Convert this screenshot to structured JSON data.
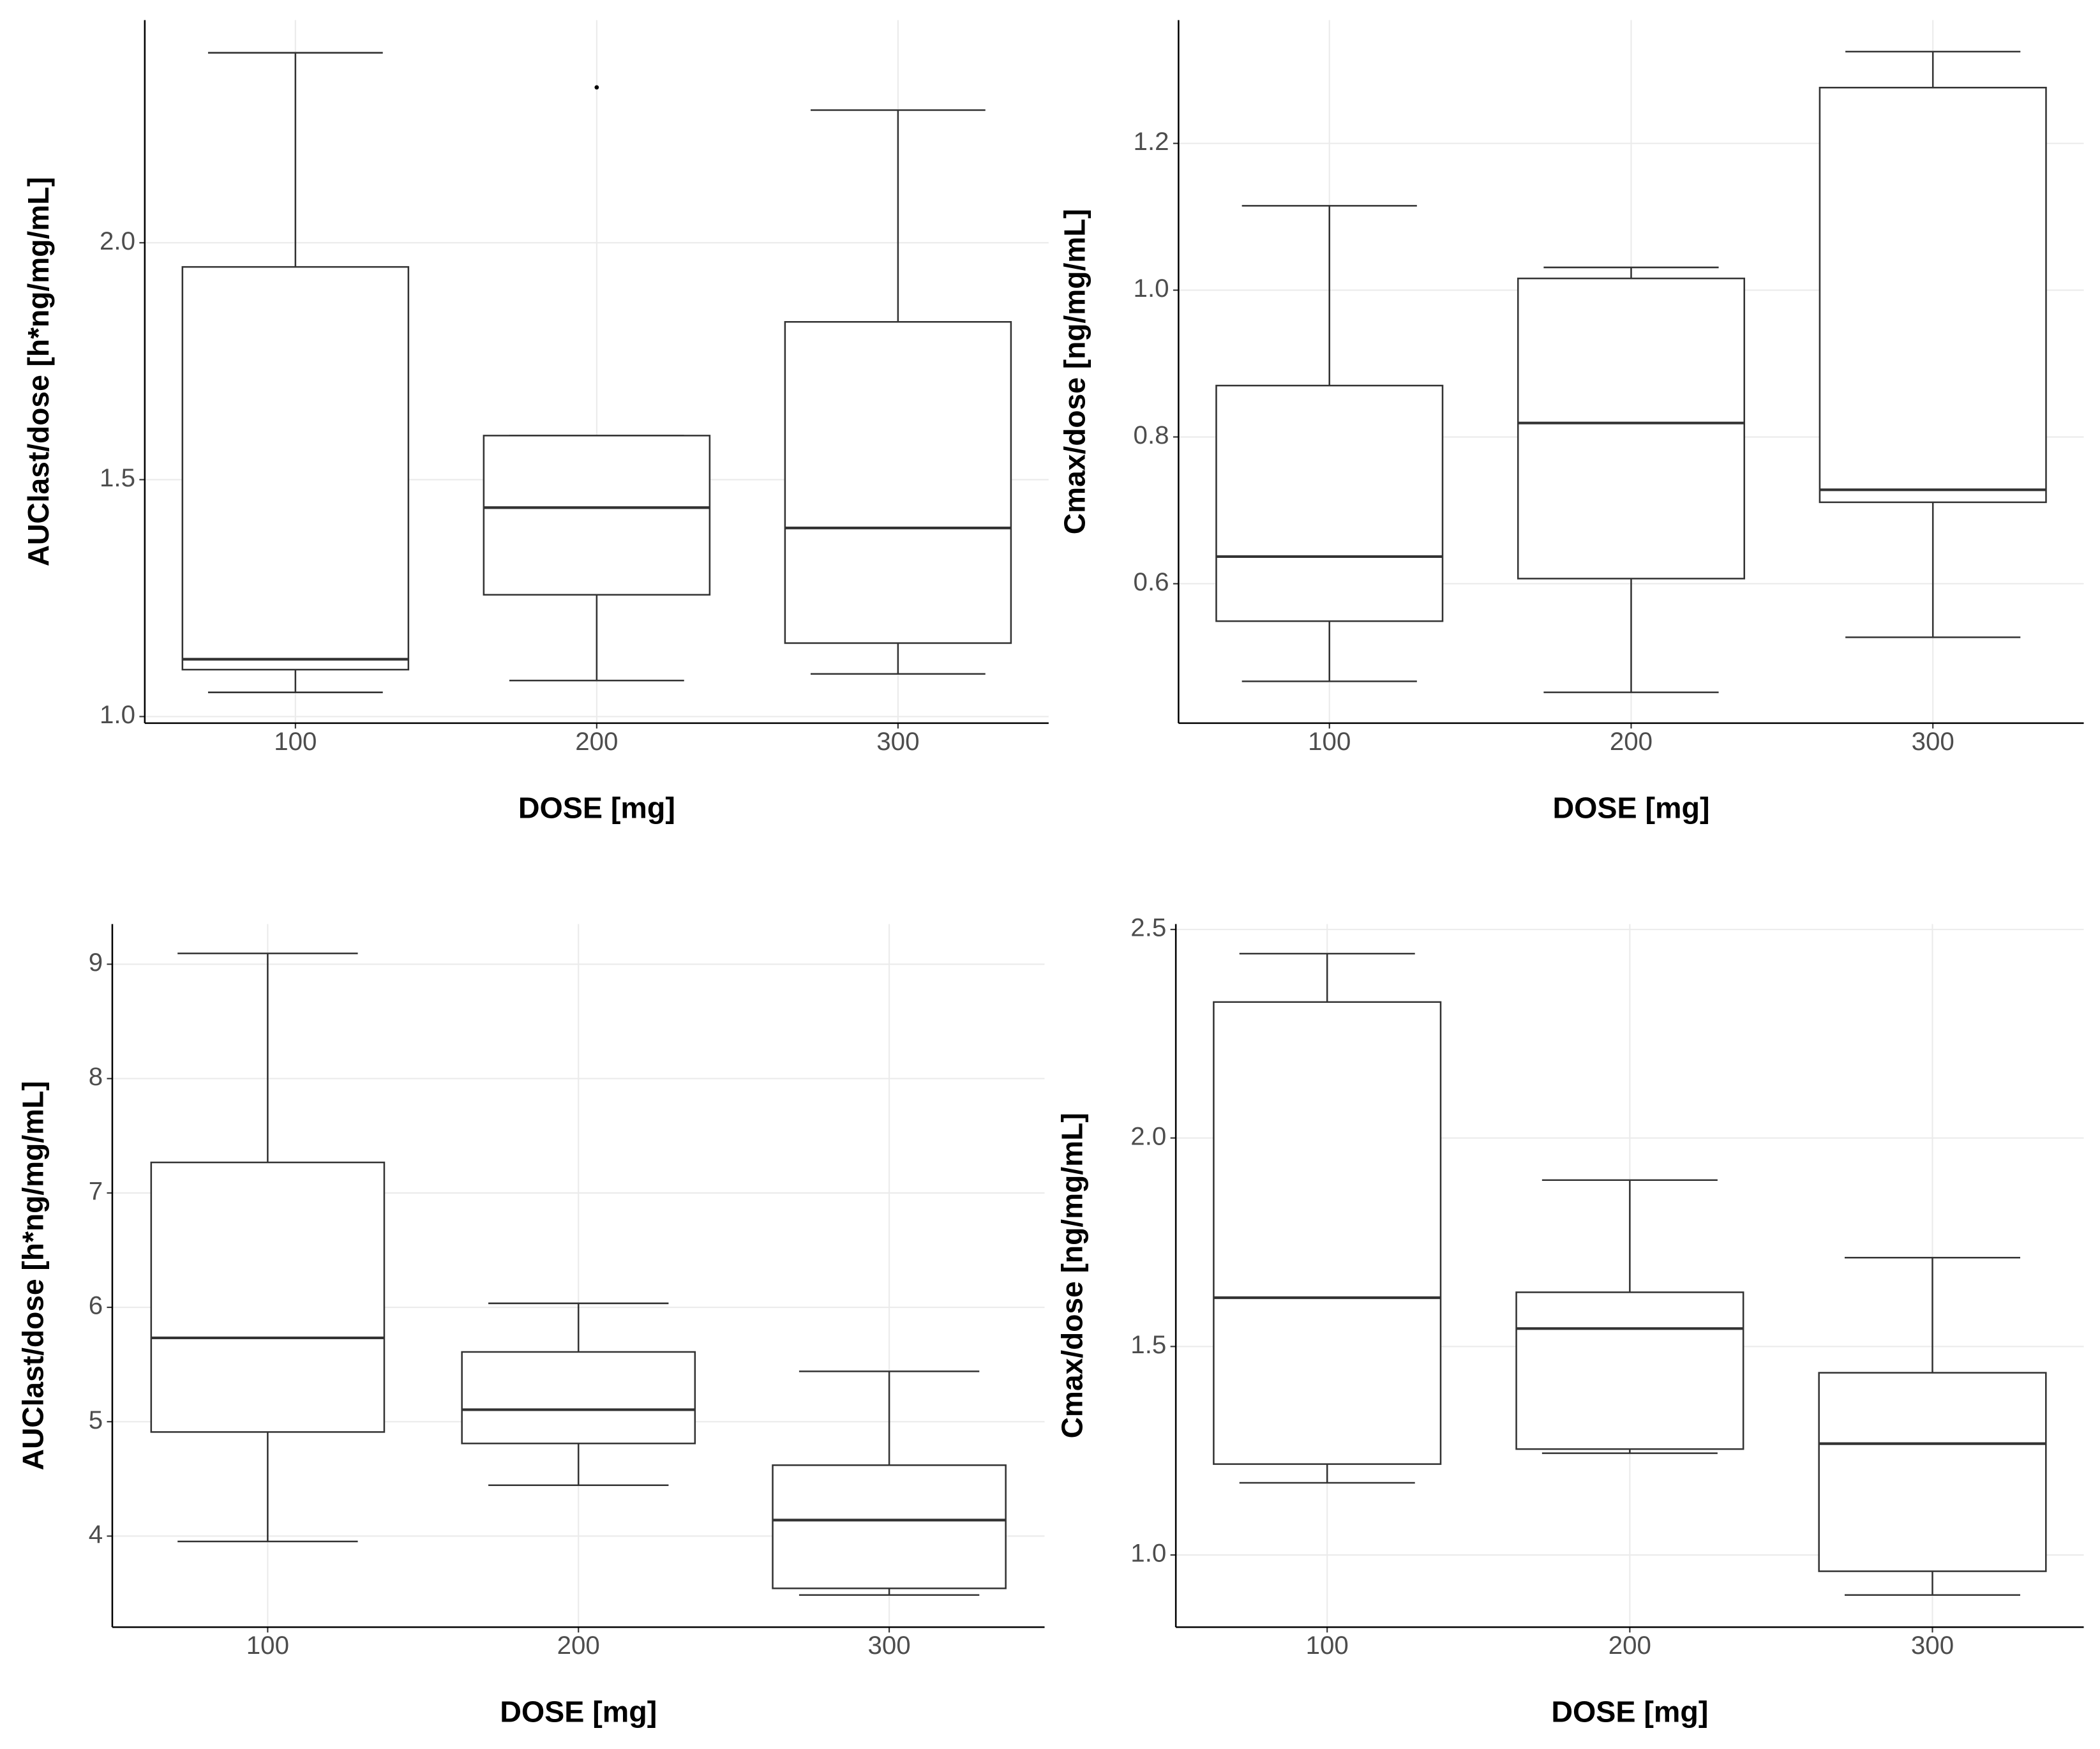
{
  "chart_data": [
    {
      "type": "box",
      "xlabel": "DOSE [mg]",
      "ylabel": "AUClast/dose [h*ng/mg/mL]",
      "categories": [
        "100",
        "200",
        "300"
      ],
      "whisker_low": [
        1.051,
        1.076,
        1.09
      ],
      "q1": [
        1.099,
        1.257,
        1.155
      ],
      "median": [
        1.121,
        1.441,
        1.398
      ],
      "q3": [
        1.949,
        1.593,
        1.833
      ],
      "whisker_high": [
        2.401,
        1.593,
        2.28
      ],
      "outliers": [
        [],
        [
          2.328
        ],
        []
      ],
      "color": "#333333",
      "ylim": [
        0.986,
        2.47
      ],
      "yticks": [
        {
          "value": 1,
          "label": "1.0"
        },
        1.5,
        {
          "value": 2,
          "label": "2.0"
        }
      ],
      "grid": true
    },
    {
      "type": "box",
      "xlabel": "DOSE [mg]",
      "ylabel": "Cmax/dose [ng/mg/mL]",
      "categories": [
        "100",
        "200",
        "300"
      ],
      "whisker_low": [
        0.467,
        0.452,
        0.527
      ],
      "q1": [
        0.549,
        0.607,
        0.711
      ],
      "median": [
        0.637,
        0.819,
        0.728
      ],
      "q3": [
        0.87,
        1.016,
        1.276
      ],
      "whisker_high": [
        1.115,
        1.031,
        1.325
      ],
      "outliers": [
        [],
        [],
        []
      ],
      "color": "#333333",
      "ylim": [
        0.41,
        1.368
      ],
      "yticks": [
        0.6,
        0.8,
        {
          "value": 1,
          "label": "1.0"
        },
        1.2
      ],
      "grid": true
    },
    {
      "type": "box",
      "xlabel": "DOSE [mg]",
      "ylabel": "AUClast/dose [h*ng/mg/mL]",
      "categories": [
        "100",
        "200",
        "300"
      ],
      "whisker_low": [
        3.953,
        4.445,
        3.485
      ],
      "q1": [
        4.91,
        4.81,
        3.543
      ],
      "median": [
        5.733,
        5.105,
        4.14
      ],
      "q3": [
        7.267,
        5.61,
        4.62
      ],
      "whisker_high": [
        9.094,
        6.035,
        5.44
      ],
      "outliers": [
        [],
        [],
        []
      ],
      "color": "#333333",
      "ylim": [
        3.204,
        9.351
      ],
      "yticks": [
        4,
        5,
        6,
        7,
        8,
        9
      ],
      "grid": true
    },
    {
      "type": "box",
      "xlabel": "DOSE [mg]",
      "ylabel": "Cmax/dose [ng/mg/mL]",
      "categories": [
        "100",
        "200",
        "300"
      ],
      "whisker_low": [
        1.173,
        1.244,
        0.904
      ],
      "q1": [
        1.218,
        1.254,
        0.961
      ],
      "median": [
        1.617,
        1.543,
        1.267
      ],
      "q3": [
        2.326,
        1.63,
        1.437
      ],
      "whisker_high": [
        2.442,
        1.899,
        1.713
      ],
      "outliers": [
        [],
        [],
        []
      ],
      "color": "#333333",
      "ylim": [
        0.827,
        2.513
      ],
      "yticks": [
        {
          "value": 1,
          "label": "1.0"
        },
        1.5,
        {
          "value": 2,
          "label": "2.0"
        },
        2.5
      ],
      "grid": true
    }
  ]
}
